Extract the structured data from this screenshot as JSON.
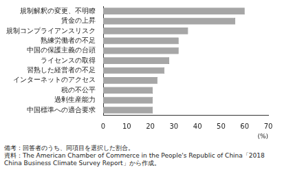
{
  "chart_data": {
    "type": "bar",
    "orientation": "horizontal",
    "categories": [
      "規制解釈の変更、不明瞭",
      "賃金の上昇",
      "規制コンプライアンスリスク",
      "熟練労働者の不足",
      "中国の保護主義の台頭",
      "ライセンスの取得",
      "習熟した経営者の不足",
      "インターネットのアクセス",
      "税の不公平",
      "過剰生産能力",
      "中国標準への適合要求"
    ],
    "values": [
      60,
      56,
      36,
      32,
      32,
      28,
      26,
      23,
      21,
      21,
      21
    ],
    "color": "#a6a6a6",
    "x_label": "(%)",
    "xlim": [
      0,
      70
    ],
    "xticks": [
      0,
      10,
      20,
      30,
      40,
      50,
      60,
      70
    ],
    "grid": false,
    "notes": [
      "備考：回答者のうち、同項目を選択した割合。",
      "資料：The American Chamber of Commerce in the People's Republic of China「2018 China Business Climate Survey Report」から作成。"
    ]
  }
}
